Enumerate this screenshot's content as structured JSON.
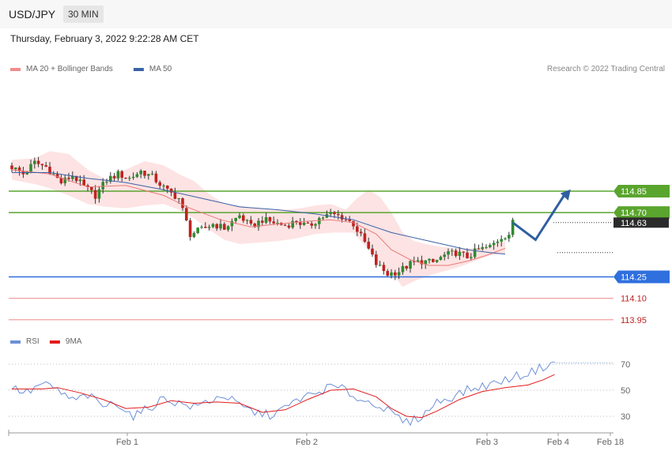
{
  "header": {
    "symbol": "USD/JPY",
    "timeframe": "30 MIN"
  },
  "datetime": "Thursday, February 3, 2022 9:22:28 AM CET",
  "credit": "Research © 2022 Trading Central",
  "colors": {
    "bull": "#2e8b2e",
    "bear": "#c0231f",
    "ma50": "#3a62a8",
    "ma20": "#e97a7a",
    "band": "#fddede",
    "resistance": "#5aa52e",
    "support": "#2f6fde",
    "lower": "#f2a0a0",
    "rsi": "#6c8fd8",
    "rsi_ma": "#e31b1b",
    "arrow": "#2f5fa0"
  },
  "chart_data": [
    {
      "type": "candlestick",
      "legend": [
        {
          "name": "MA 20 + Bollinger Bands",
          "color": "#f08c8c"
        },
        {
          "name": "MA 50",
          "color": "#3a62a8"
        }
      ],
      "ylim": [
        113.9,
        115.12
      ],
      "x_ticks": [
        "Feb 1",
        "Feb 2",
        "Feb 3",
        "Feb 4",
        "Feb 18"
      ],
      "levels": [
        {
          "value": 114.85,
          "label": "114.85",
          "kind": "resistance"
        },
        {
          "value": 114.7,
          "label": "114.70",
          "kind": "resistance"
        },
        {
          "value": 114.63,
          "label": "114.63",
          "kind": "last"
        },
        {
          "value": 114.25,
          "label": "114.25",
          "kind": "support"
        },
        {
          "value": 114.1,
          "label": "114.10",
          "kind": "lower"
        },
        {
          "value": 113.95,
          "label": "113.95",
          "kind": "lower"
        }
      ],
      "close_path": [
        [
          0,
          115.02
        ],
        [
          3,
          114.97
        ],
        [
          6,
          115.05
        ],
        [
          9,
          115.02
        ],
        [
          13,
          114.91
        ],
        [
          16,
          114.96
        ],
        [
          19,
          114.88
        ],
        [
          22,
          114.82
        ],
        [
          25,
          114.93
        ],
        [
          28,
          114.97
        ],
        [
          31,
          114.94
        ],
        [
          34,
          114.99
        ],
        [
          37,
          114.95
        ],
        [
          41,
          114.85
        ],
        [
          44,
          114.8
        ],
        [
          47,
          114.55
        ],
        [
          50,
          114.58
        ],
        [
          53,
          114.62
        ],
        [
          56,
          114.59
        ],
        [
          60,
          114.68
        ],
        [
          63,
          114.6
        ],
        [
          66,
          114.65
        ],
        [
          69,
          114.63
        ],
        [
          72,
          114.61
        ],
        [
          75,
          114.64
        ],
        [
          78,
          114.6
        ],
        [
          81,
          114.66
        ],
        [
          84,
          114.69
        ],
        [
          87,
          114.67
        ],
        [
          90,
          114.62
        ],
        [
          93,
          114.49
        ],
        [
          96,
          114.34
        ],
        [
          99,
          114.27
        ],
        [
          102,
          114.29
        ],
        [
          105,
          114.34
        ],
        [
          108,
          114.36
        ],
        [
          111,
          114.35
        ],
        [
          114,
          114.4
        ],
        [
          117,
          114.42
        ],
        [
          120,
          114.39
        ],
        [
          123,
          114.44
        ],
        [
          126,
          114.46
        ],
        [
          129,
          114.53
        ],
        [
          131,
          114.55
        ],
        [
          132,
          114.63
        ]
      ],
      "ma50": [
        [
          0,
          114.98
        ],
        [
          10,
          114.98
        ],
        [
          20,
          114.94
        ],
        [
          30,
          114.91
        ],
        [
          40,
          114.86
        ],
        [
          50,
          114.8
        ],
        [
          60,
          114.74
        ],
        [
          70,
          114.72
        ],
        [
          80,
          114.69
        ],
        [
          90,
          114.65
        ],
        [
          100,
          114.56
        ],
        [
          110,
          114.5
        ],
        [
          120,
          114.44
        ],
        [
          126,
          114.42
        ],
        [
          130,
          114.41
        ]
      ],
      "ma20": [
        [
          0,
          115.0
        ],
        [
          10,
          114.97
        ],
        [
          20,
          114.88
        ],
        [
          30,
          114.89
        ],
        [
          40,
          114.82
        ],
        [
          47,
          114.73
        ],
        [
          55,
          114.65
        ],
        [
          63,
          114.6
        ],
        [
          70,
          114.62
        ],
        [
          78,
          114.64
        ],
        [
          84,
          114.65
        ],
        [
          90,
          114.63
        ],
        [
          96,
          114.55
        ],
        [
          100,
          114.44
        ],
        [
          105,
          114.37
        ],
        [
          110,
          114.33
        ],
        [
          115,
          114.33
        ],
        [
          120,
          114.36
        ],
        [
          125,
          114.4
        ],
        [
          130,
          114.45
        ]
      ],
      "bb_upper": [
        [
          0,
          115.07
        ],
        [
          6,
          115.08
        ],
        [
          10,
          115.13
        ],
        [
          15,
          115.11
        ],
        [
          20,
          115.0
        ],
        [
          25,
          114.93
        ],
        [
          30,
          115.0
        ],
        [
          35,
          115.06
        ],
        [
          40,
          115.03
        ],
        [
          44,
          114.97
        ],
        [
          48,
          114.92
        ],
        [
          52,
          114.83
        ],
        [
          56,
          114.76
        ],
        [
          60,
          114.75
        ],
        [
          64,
          114.73
        ],
        [
          68,
          114.72
        ],
        [
          72,
          114.72
        ],
        [
          76,
          114.73
        ],
        [
          80,
          114.75
        ],
        [
          84,
          114.76
        ],
        [
          88,
          114.72
        ],
        [
          91,
          114.8
        ],
        [
          94,
          114.86
        ],
        [
          97,
          114.81
        ],
        [
          100,
          114.7
        ],
        [
          103,
          114.56
        ],
        [
          106,
          114.5
        ],
        [
          109,
          114.48
        ],
        [
          113,
          114.46
        ],
        [
          117,
          114.45
        ],
        [
          121,
          114.45
        ],
        [
          125,
          114.46
        ],
        [
          128,
          114.49
        ],
        [
          130,
          114.5
        ]
      ],
      "bb_lower": [
        [
          130,
          114.41
        ],
        [
          126,
          114.4
        ],
        [
          122,
          114.36
        ],
        [
          118,
          114.32
        ],
        [
          114,
          114.29
        ],
        [
          110,
          114.26
        ],
        [
          106,
          114.22
        ],
        [
          103,
          114.18
        ],
        [
          100,
          114.28
        ],
        [
          97,
          114.34
        ],
        [
          94,
          114.44
        ],
        [
          90,
          114.56
        ],
        [
          85,
          114.56
        ],
        [
          80,
          114.55
        ],
        [
          75,
          114.52
        ],
        [
          70,
          114.5
        ],
        [
          65,
          114.49
        ],
        [
          60,
          114.48
        ],
        [
          56,
          114.51
        ],
        [
          52,
          114.58
        ],
        [
          48,
          114.66
        ],
        [
          44,
          114.72
        ],
        [
          40,
          114.76
        ],
        [
          35,
          114.75
        ],
        [
          30,
          114.73
        ],
        [
          25,
          114.74
        ],
        [
          20,
          114.76
        ],
        [
          15,
          114.82
        ],
        [
          10,
          114.87
        ],
        [
          6,
          114.9
        ],
        [
          0,
          114.93
        ]
      ],
      "projection": [
        [
          132,
          114.63
        ],
        [
          138,
          114.51
        ],
        [
          146,
          114.84
        ]
      ]
    },
    {
      "type": "line",
      "legend": [
        {
          "name": "RSI",
          "color": "#6c8fd8"
        },
        {
          "name": "9MA",
          "color": "#e31b1b"
        }
      ],
      "ylim": [
        20,
        80
      ],
      "y_ticks": [
        30,
        50,
        70
      ],
      "series": [
        {
          "name": "RSI",
          "values": [
            [
              0,
              52
            ],
            [
              4,
              48
            ],
            [
              8,
              55
            ],
            [
              12,
              50
            ],
            [
              16,
              42
            ],
            [
              20,
              46
            ],
            [
              24,
              38
            ],
            [
              28,
              40
            ],
            [
              32,
              30
            ],
            [
              36,
              36
            ],
            [
              40,
              44
            ],
            [
              44,
              40
            ],
            [
              48,
              37
            ],
            [
              52,
              42
            ],
            [
              56,
              46
            ],
            [
              60,
              38
            ],
            [
              64,
              33
            ],
            [
              68,
              31
            ],
            [
              72,
              36
            ],
            [
              76,
              44
            ],
            [
              80,
              47
            ],
            [
              84,
              53
            ],
            [
              88,
              50
            ],
            [
              92,
              42
            ],
            [
              96,
              40
            ],
            [
              100,
              32
            ],
            [
              104,
              25
            ],
            [
              108,
              30
            ],
            [
              112,
              41
            ],
            [
              116,
              45
            ],
            [
              120,
              50
            ],
            [
              124,
              53
            ],
            [
              128,
              56
            ],
            [
              132,
              60
            ],
            [
              136,
              63
            ],
            [
              140,
              68
            ],
            [
              143,
              72
            ]
          ]
        },
        {
          "name": "9MA",
          "values": [
            [
              0,
              51
            ],
            [
              8,
              51
            ],
            [
              12,
              52
            ],
            [
              18,
              48
            ],
            [
              24,
              43
            ],
            [
              30,
              36
            ],
            [
              36,
              37
            ],
            [
              42,
              42
            ],
            [
              48,
              40
            ],
            [
              54,
              41
            ],
            [
              60,
              40
            ],
            [
              66,
              33
            ],
            [
              72,
              35
            ],
            [
              78,
              43
            ],
            [
              84,
              50
            ],
            [
              90,
              51
            ],
            [
              96,
              45
            ],
            [
              100,
              36
            ],
            [
              104,
              30
            ],
            [
              108,
              29
            ],
            [
              112,
              34
            ],
            [
              118,
              43
            ],
            [
              124,
              49
            ],
            [
              130,
              52
            ],
            [
              136,
              54
            ],
            [
              140,
              58
            ],
            [
              143,
              62
            ]
          ]
        }
      ]
    }
  ]
}
